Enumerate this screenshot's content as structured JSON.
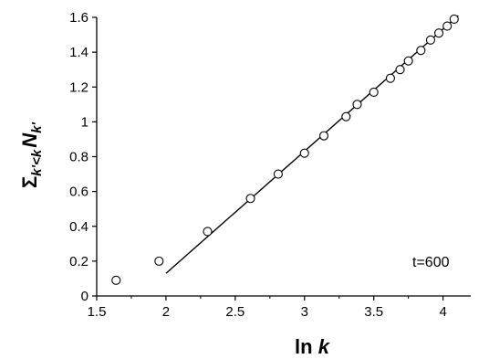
{
  "chart_data": {
    "type": "scatter",
    "xlabel_parts": [
      "ln ",
      "k"
    ],
    "ylabel_parts": [
      "Σ",
      "k'<k",
      "N",
      "k'"
    ],
    "annotation": "t=600",
    "xlim": [
      1.5,
      4.2
    ],
    "ylim": [
      0,
      1.6
    ],
    "xticks": [
      1.5,
      2,
      2.5,
      3,
      3.5,
      4
    ],
    "xtick_labels": [
      "1.5",
      "2",
      "2.5",
      "3",
      "3.5",
      "4"
    ],
    "yticks": [
      0,
      0.2,
      0.4,
      0.6,
      0.8,
      1,
      1.2,
      1.4,
      1.6
    ],
    "ytick_labels": [
      "0",
      "0.2",
      "0.4",
      "0.6",
      "0.8",
      "1",
      "1.2",
      "1.4",
      "1.6"
    ],
    "grid": false,
    "points": [
      {
        "x": 1.64,
        "y": 0.09
      },
      {
        "x": 1.95,
        "y": 0.2
      },
      {
        "x": 2.3,
        "y": 0.37
      },
      {
        "x": 2.61,
        "y": 0.56
      },
      {
        "x": 2.81,
        "y": 0.7
      },
      {
        "x": 3.0,
        "y": 0.82
      },
      {
        "x": 3.14,
        "y": 0.92
      },
      {
        "x": 3.3,
        "y": 1.03
      },
      {
        "x": 3.38,
        "y": 1.1
      },
      {
        "x": 3.5,
        "y": 1.17
      },
      {
        "x": 3.62,
        "y": 1.25
      },
      {
        "x": 3.69,
        "y": 1.3
      },
      {
        "x": 3.75,
        "y": 1.35
      },
      {
        "x": 3.84,
        "y": 1.41
      },
      {
        "x": 3.91,
        "y": 1.47
      },
      {
        "x": 3.97,
        "y": 1.51
      },
      {
        "x": 4.03,
        "y": 1.55
      },
      {
        "x": 4.08,
        "y": 1.59
      }
    ],
    "fit_line": {
      "x": [
        2.0,
        4.11
      ],
      "y": [
        0.13,
        1.61
      ]
    },
    "colors": {
      "marker_fill": "#ffffff",
      "marker_stroke": "#000000",
      "line": "#000000",
      "axis": "#000000"
    }
  }
}
